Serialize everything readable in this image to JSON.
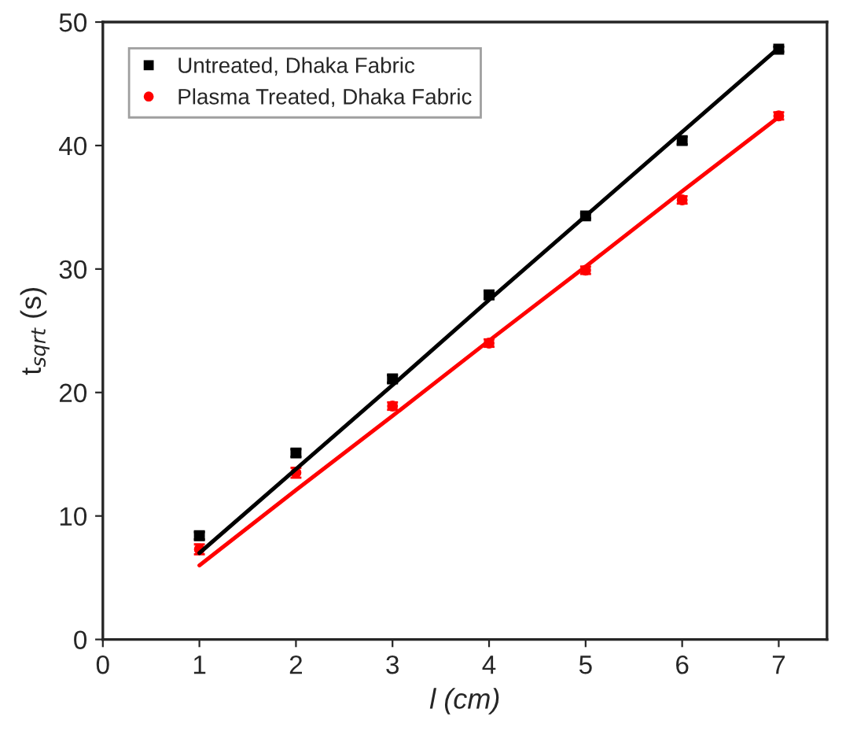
{
  "chart_data": {
    "type": "scatter",
    "xlabel": "l (cm)",
    "ylabel": "t$_{sqrt}$ (s)",
    "x": [
      1,
      2,
      3,
      4,
      5,
      6,
      7
    ],
    "series": [
      {
        "name": "Untreated, Dhaka Fabric",
        "color": "#000000",
        "marker": "square",
        "values": [
          8.4,
          15.1,
          21.1,
          27.9,
          34.3,
          40.4,
          47.8
        ],
        "errors": [
          0.3,
          0.3,
          0.3,
          0.3,
          0.2,
          0.3,
          0.2
        ]
      },
      {
        "name": "Plasma Treated, Dhaka Fabric",
        "color": "#ff0000",
        "marker": "circle",
        "values": [
          7.3,
          13.5,
          18.9,
          24.0,
          29.9,
          35.6,
          42.4
        ],
        "errors": [
          0.4,
          0.4,
          0.3,
          0.3,
          0.3,
          0.3,
          0.3
        ]
      },
      {
        "type": "line",
        "color": "#000000",
        "values": [
          7.0,
          13.8,
          20.6,
          27.5,
          34.3,
          41.1,
          47.9
        ]
      },
      {
        "type": "line",
        "color": "#ff0000",
        "values": [
          6.0,
          12.1,
          18.1,
          24.2,
          30.2,
          36.3,
          42.3
        ]
      }
    ],
    "xlim": [
      0,
      7.5
    ],
    "xticks": [
      0,
      1,
      2,
      3,
      4,
      5,
      6,
      7
    ],
    "ylim": [
      0,
      50
    ],
    "yticks": [
      0,
      10,
      20,
      30,
      40,
      50
    ],
    "legend": "top left",
    "grid": false
  }
}
